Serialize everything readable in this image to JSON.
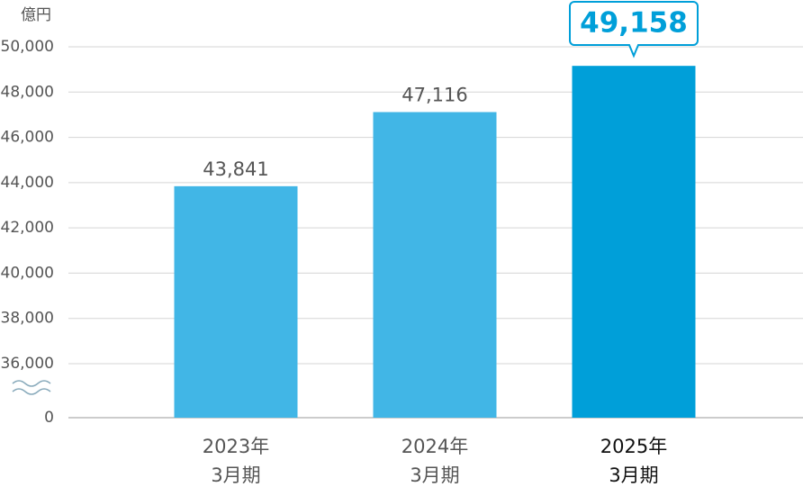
{
  "chart_data": {
    "type": "bar",
    "unit": "億円",
    "categories": [
      [
        "2023年",
        "3月期"
      ],
      [
        "2024年",
        "3月期"
      ],
      [
        "2025年",
        "3月期"
      ]
    ],
    "values": [
      43841,
      47116,
      49158
    ],
    "value_labels": [
      "43,841",
      "47,116",
      "49,158"
    ],
    "colors": [
      "#41b6e6",
      "#41b6e6",
      "#009fd9"
    ],
    "highlight_index": 2,
    "ylim": [
      36000,
      50000
    ],
    "axis_break": true,
    "yticks": [
      0,
      {
        "value": 36000,
        "label": "36,000"
      },
      {
        "value": 38000,
        "label": "38,000"
      },
      {
        "value": 40000,
        "label": "40,000"
      },
      {
        "value": 42000,
        "label": "42,000"
      },
      {
        "value": 44000,
        "label": "44,000"
      },
      {
        "value": 46000,
        "label": "46,000"
      },
      {
        "value": 48000,
        "label": "48,000"
      },
      {
        "value": 50000,
        "label": "50,000"
      }
    ],
    "grid": true
  }
}
